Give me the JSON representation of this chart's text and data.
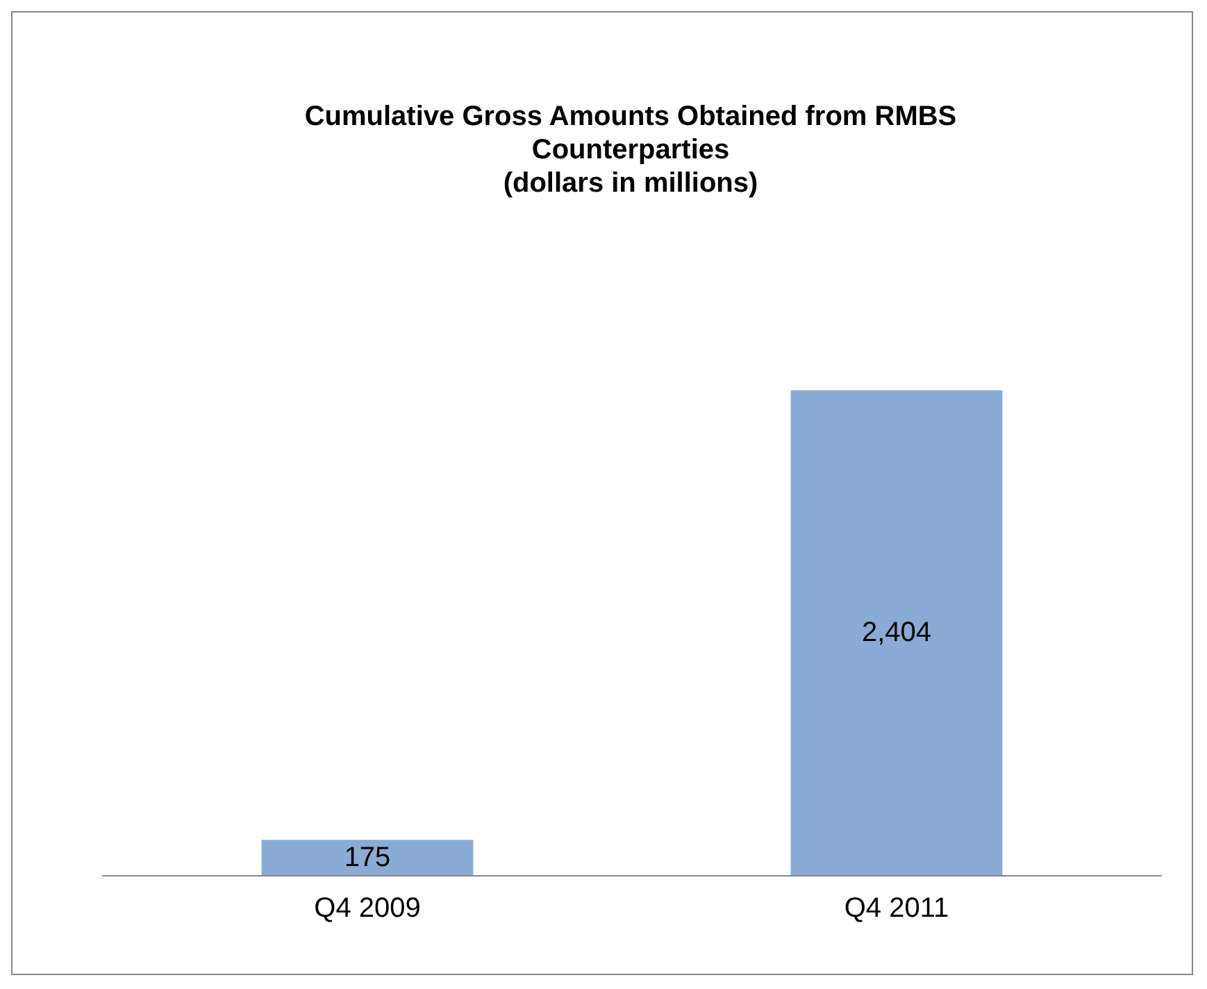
{
  "chart_data": {
    "type": "bar",
    "title": "Cumulative Gross Amounts Obtained from RMBS\nCounterparties\n(dollars in millions)",
    "categories": [
      "Q4 2009",
      "Q4 2011"
    ],
    "values": [
      175,
      2404
    ],
    "value_labels": [
      "175",
      "2,404"
    ],
    "color": "#8aabd5"
  }
}
